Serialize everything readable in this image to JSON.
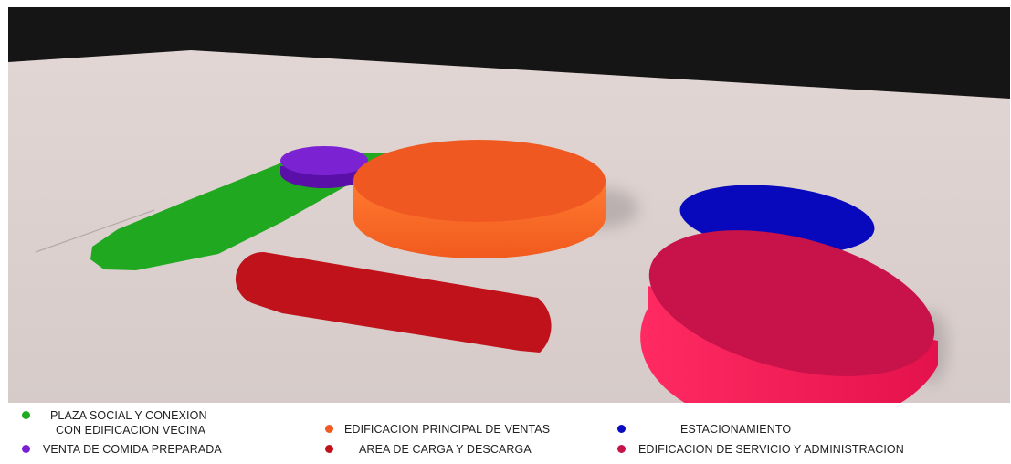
{
  "legend": [
    {
      "key": "plaza",
      "text_line1": "PLAZA SOCIAL Y CONEXION",
      "text_line2": "CON EDIFICACION VECINA",
      "color": "#1faa1f"
    },
    {
      "key": "venta-comida",
      "text": "VENTA DE COMIDA PREPARADA",
      "color": "#7a1fd1"
    },
    {
      "key": "edificacion-principal",
      "text": "EDIFICACION PRINCIPAL DE VENTAS",
      "color": "#f25a22"
    },
    {
      "key": "area-carga",
      "text": "AREA DE CARGA Y DESCARGA",
      "color": "#c0121b"
    },
    {
      "key": "estacionamiento",
      "text": "ESTACIONAMIENTO",
      "color": "#0a0ac0"
    },
    {
      "key": "edificacion-servicio",
      "text": "EDIFICACION DE SERVICIO Y ADMINISTRACION",
      "color": "#c8124a"
    }
  ],
  "colors": {
    "sky": "#141414",
    "ground": "#d8cdcb",
    "plaza": "#1faa1f",
    "venta_comida": "#7a1fd1",
    "venta_comida_side": "#5a10a8",
    "principal_top": "#f25a22",
    "principal_side": "#ff6a2a",
    "carga": "#c0121b",
    "estacionamiento": "#0a0ac0",
    "servicio_top": "#c8124a",
    "servicio_side": "#f2195a"
  }
}
